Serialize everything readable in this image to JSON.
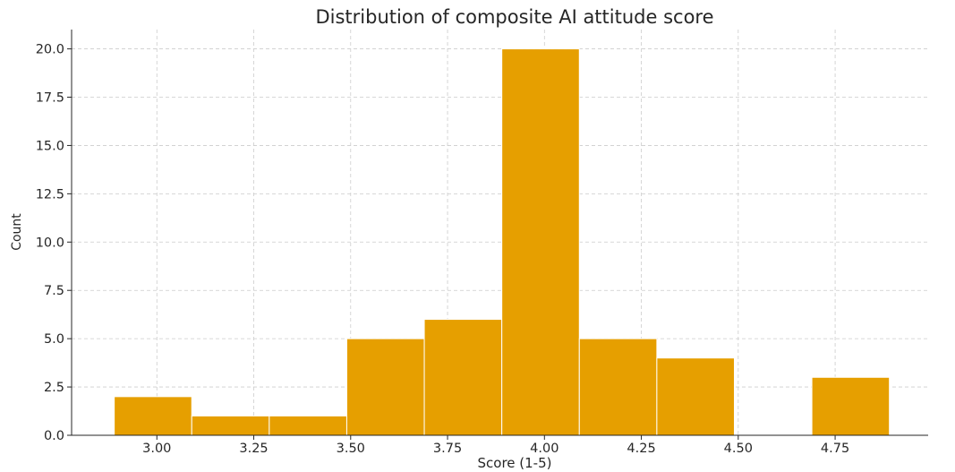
{
  "chart_data": {
    "type": "bar",
    "title": "Distribution of composite AI attitude score",
    "xlabel": "Score (1-5)",
    "ylabel": "Count",
    "bins": [
      {
        "start": 2.89,
        "end": 3.09,
        "count": 2
      },
      {
        "start": 3.09,
        "end": 3.29,
        "count": 1
      },
      {
        "start": 3.29,
        "end": 3.49,
        "count": 1
      },
      {
        "start": 3.49,
        "end": 3.69,
        "count": 5
      },
      {
        "start": 3.69,
        "end": 3.89,
        "count": 6
      },
      {
        "start": 3.89,
        "end": 4.09,
        "count": 20
      },
      {
        "start": 4.09,
        "end": 4.29,
        "count": 5
      },
      {
        "start": 4.29,
        "end": 4.49,
        "count": 4
      },
      {
        "start": 4.49,
        "end": 4.69,
        "count": 0
      },
      {
        "start": 4.69,
        "end": 4.89,
        "count": 3
      }
    ],
    "xticks": [
      3.0,
      3.25,
      3.5,
      3.75,
      4.0,
      4.25,
      4.5,
      4.75
    ],
    "xtick_labels": [
      "3.00",
      "3.25",
      "3.50",
      "3.75",
      "4.00",
      "4.25",
      "4.50",
      "4.75"
    ],
    "yticks": [
      0,
      2.5,
      5,
      7.5,
      10,
      12.5,
      15,
      17.5,
      20
    ],
    "ytick_labels": [
      "0.0",
      "2.5",
      "5.0",
      "7.5",
      "10.0",
      "12.5",
      "15.0",
      "17.5",
      "20.0"
    ],
    "xlim": [
      2.78,
      4.99
    ],
    "ylim": [
      0,
      21
    ],
    "grid": true,
    "bar_color": "#E69F00",
    "edge_color": "#ffffff"
  }
}
